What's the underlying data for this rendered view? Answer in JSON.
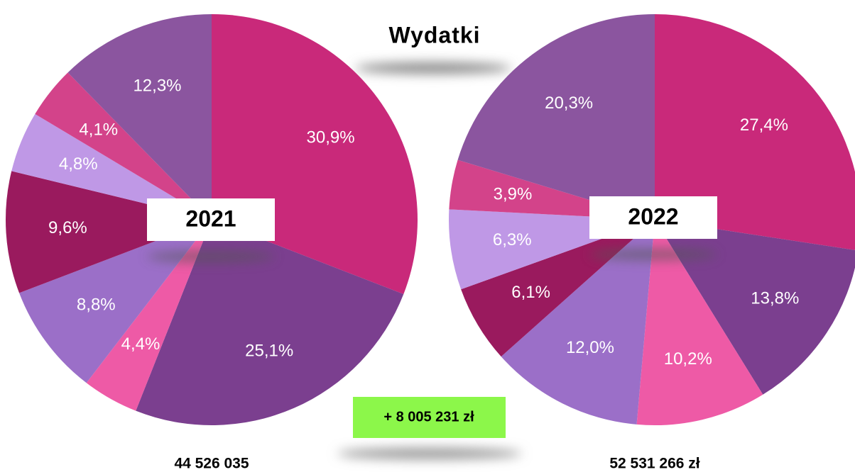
{
  "page": {
    "title": "Wydatki",
    "difference": "+ 8 005 231 zł"
  },
  "chart_data": [
    {
      "type": "pie",
      "title": "2021",
      "total": "44 526 035",
      "values": [
        30.9,
        25.1,
        4.4,
        8.8,
        9.6,
        4.8,
        4.1,
        12.3
      ],
      "value_labels": [
        "30,9%",
        "25,1%",
        "4,4%",
        "8,8%",
        "9,6%",
        "4,8%",
        "4,1%",
        "12,3%"
      ],
      "colors": [
        "#c9297a",
        "#7b3f8f",
        "#ee5aa6",
        "#9b6fc8",
        "#9a1a5e",
        "#bf98e6",
        "#d3438a",
        "#8b559f"
      ]
    },
    {
      "type": "pie",
      "title": "2022",
      "total": "52 531 266 zł",
      "values": [
        27.4,
        13.8,
        10.2,
        12.0,
        6.1,
        6.3,
        3.9,
        20.3
      ],
      "value_labels": [
        "27,4%",
        "13,8%",
        "10,2%",
        "12,0%",
        "6,1%",
        "6,3%",
        "3,9%",
        "20,3%"
      ],
      "colors": [
        "#c9297a",
        "#7b3f8f",
        "#ee5aa6",
        "#9b6fc8",
        "#9a1a5e",
        "#bf98e6",
        "#d3438a",
        "#8b559f"
      ]
    }
  ]
}
